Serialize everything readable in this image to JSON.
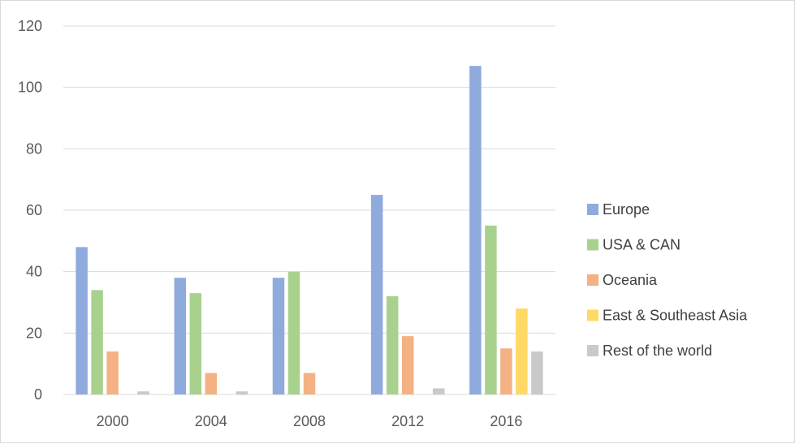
{
  "chart_data": {
    "type": "bar",
    "categories": [
      "2000",
      "2004",
      "2008",
      "2012",
      "2016"
    ],
    "series": [
      {
        "name": "Europe",
        "color": "#8faadc",
        "values": [
          48,
          38,
          38,
          65,
          107
        ]
      },
      {
        "name": "USA & CAN",
        "color": "#a9d18e",
        "values": [
          34,
          33,
          40,
          32,
          55
        ]
      },
      {
        "name": "Oceania",
        "color": "#f4b183",
        "values": [
          14,
          7,
          7,
          19,
          15
        ]
      },
      {
        "name": "East & Southeast Asia",
        "color": "#ffd966",
        "values": [
          0,
          0,
          0,
          0,
          28
        ]
      },
      {
        "name": "Rest of the world",
        "color": "#c9c9c9",
        "values": [
          1,
          1,
          0,
          2,
          14
        ]
      }
    ],
    "yticks": [
      "0",
      "20",
      "40",
      "60",
      "80",
      "100",
      "120"
    ],
    "ylim": [
      0,
      120
    ],
    "grid": true,
    "legend_position": "right",
    "title": "",
    "xlabel": "",
    "ylabel": ""
  }
}
